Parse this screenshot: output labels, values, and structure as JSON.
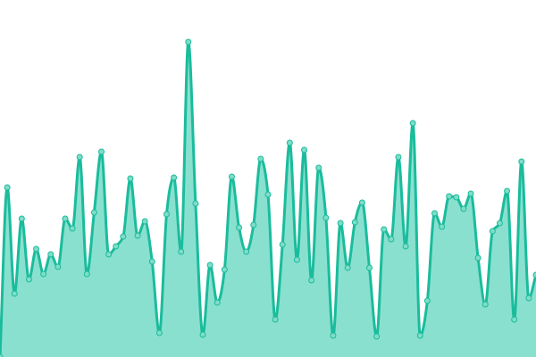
{
  "chart_data": {
    "type": "area",
    "title": "",
    "xlabel": "",
    "ylabel": "",
    "ylim": [
      0,
      400
    ],
    "grid": false,
    "legend": "none",
    "curve": "smooth",
    "show_points": true,
    "colors": {
      "line": "#1abc9c",
      "fill": "#8ae0cf",
      "point_fill": "#7fdcc8",
      "point_stroke": "#1abc9c"
    },
    "values": [
      0,
      190,
      71,
      155,
      87,
      121,
      93,
      115,
      101,
      155,
      144,
      224,
      93,
      162,
      230,
      115,
      124,
      135,
      200,
      136,
      152,
      107,
      27,
      160,
      201,
      118,
      353,
      172,
      25,
      103,
      61,
      98,
      202,
      145,
      118,
      148,
      222,
      182,
      42,
      126,
      240,
      109,
      232,
      86,
      212,
      156,
      24,
      150,
      100,
      151,
      173,
      100,
      23,
      143,
      132,
      224,
      124,
      262,
      24,
      63,
      161,
      146,
      180,
      179,
      166,
      183,
      111,
      59,
      141,
      150,
      186,
      42,
      219,
      66,
      92
    ]
  }
}
